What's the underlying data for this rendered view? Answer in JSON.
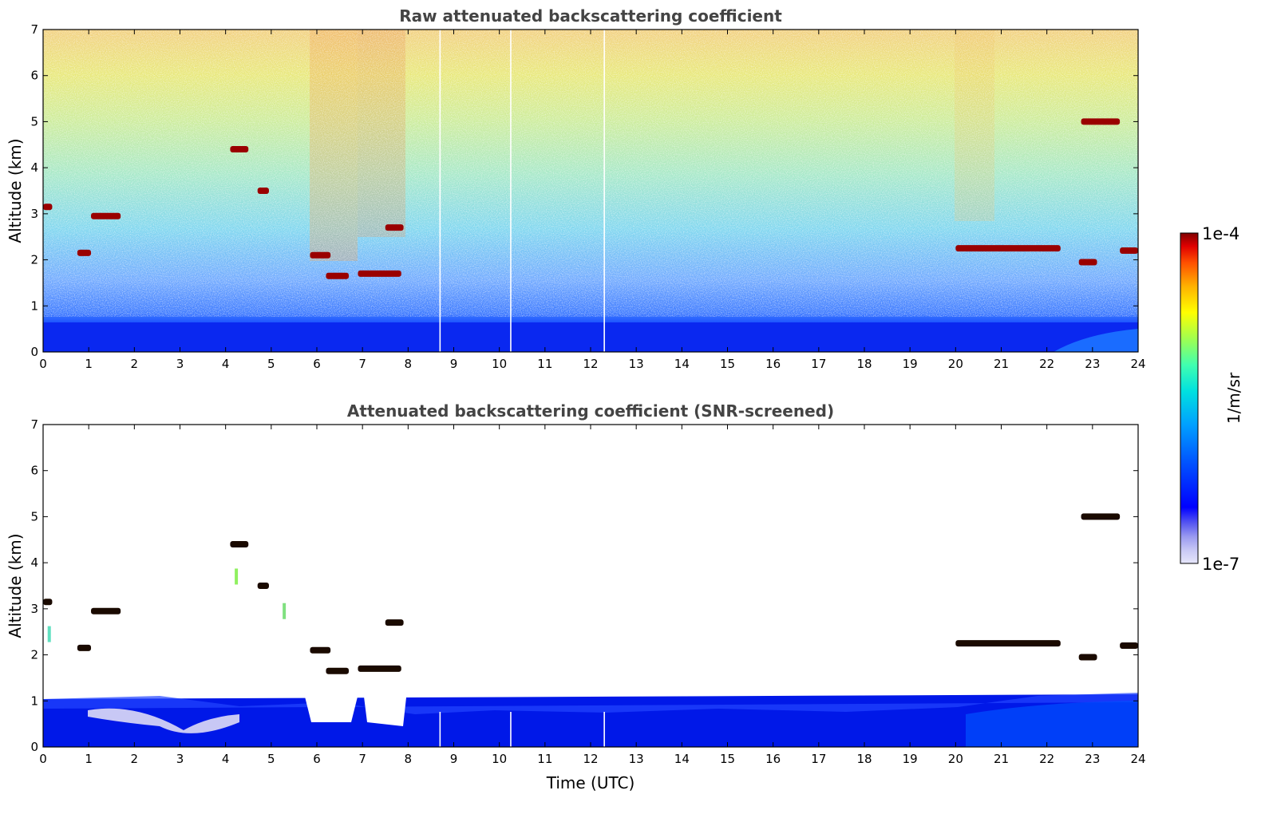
{
  "chart_data": [
    {
      "type": "heatmap",
      "title": "Raw attenuated backscattering coefficient",
      "xlabel": "",
      "ylabel": "Altitude (km)",
      "xlim": [
        0,
        24
      ],
      "ylim": [
        0,
        7
      ],
      "xticks": [
        "0",
        "1",
        "2",
        "3",
        "4",
        "5",
        "6",
        "7",
        "8",
        "9",
        "10",
        "11",
        "12",
        "13",
        "14",
        "15",
        "16",
        "17",
        "18",
        "19",
        "20",
        "21",
        "22",
        "23",
        "24"
      ],
      "yticks": [
        "0",
        "1",
        "2",
        "3",
        "4",
        "5",
        "6",
        "7"
      ],
      "boundary_layer_top_km": 0.45,
      "missing_profiles_utc": [
        8.7,
        10.25,
        12.3
      ],
      "cloud_layers": [
        {
          "t_start": 0.0,
          "t_end": 0.2,
          "alt_km": 3.15
        },
        {
          "t_start": 0.75,
          "t_end": 1.05,
          "alt_km": 2.15
        },
        {
          "t_start": 1.05,
          "t_end": 1.7,
          "alt_km": 2.95
        },
        {
          "t_start": 4.1,
          "t_end": 4.5,
          "alt_km": 4.4
        },
        {
          "t_start": 4.7,
          "t_end": 4.95,
          "alt_km": 3.5
        },
        {
          "t_start": 5.85,
          "t_end": 6.3,
          "alt_km": 2.1
        },
        {
          "t_start": 6.2,
          "t_end": 6.7,
          "alt_km": 1.65
        },
        {
          "t_start": 6.9,
          "t_end": 7.85,
          "alt_km": 1.7
        },
        {
          "t_start": 7.5,
          "t_end": 7.9,
          "alt_km": 2.7
        },
        {
          "t_start": 20.0,
          "t_end": 22.3,
          "alt_km": 2.25
        },
        {
          "t_start": 22.7,
          "t_end": 23.1,
          "alt_km": 1.95
        },
        {
          "t_start": 23.6,
          "t_end": 24.0,
          "alt_km": 2.2
        },
        {
          "t_start": 22.75,
          "t_end": 23.6,
          "alt_km": 5.0
        }
      ]
    },
    {
      "type": "heatmap",
      "title": "Attenuated backscattering coefficient (SNR-screened)",
      "xlabel": "Time (UTC)",
      "ylabel": "Altitude (km)",
      "xlim": [
        0,
        24
      ],
      "ylim": [
        0,
        7
      ],
      "xticks": [
        "0",
        "1",
        "2",
        "3",
        "4",
        "5",
        "6",
        "7",
        "8",
        "9",
        "10",
        "11",
        "12",
        "13",
        "14",
        "15",
        "16",
        "17",
        "18",
        "19",
        "20",
        "21",
        "22",
        "23",
        "24"
      ],
      "yticks": [
        "0",
        "1",
        "2",
        "3",
        "4",
        "5",
        "6",
        "7"
      ],
      "screened_layer_top_km": 1.05
    }
  ],
  "colorbar": {
    "label": "1/m/sr",
    "max_label": "1e-4",
    "min_label": "1e-7",
    "scale": "log",
    "colors": [
      "#e6e6fa",
      "#c8c8f5",
      "#9b9bf0",
      "#5a5af0",
      "#0000ff",
      "#0050ff",
      "#00a0ff",
      "#00e0e0",
      "#40ffb0",
      "#a0ff50",
      "#ffff00",
      "#ffb000",
      "#ff5000",
      "#e00000",
      "#800000"
    ]
  }
}
